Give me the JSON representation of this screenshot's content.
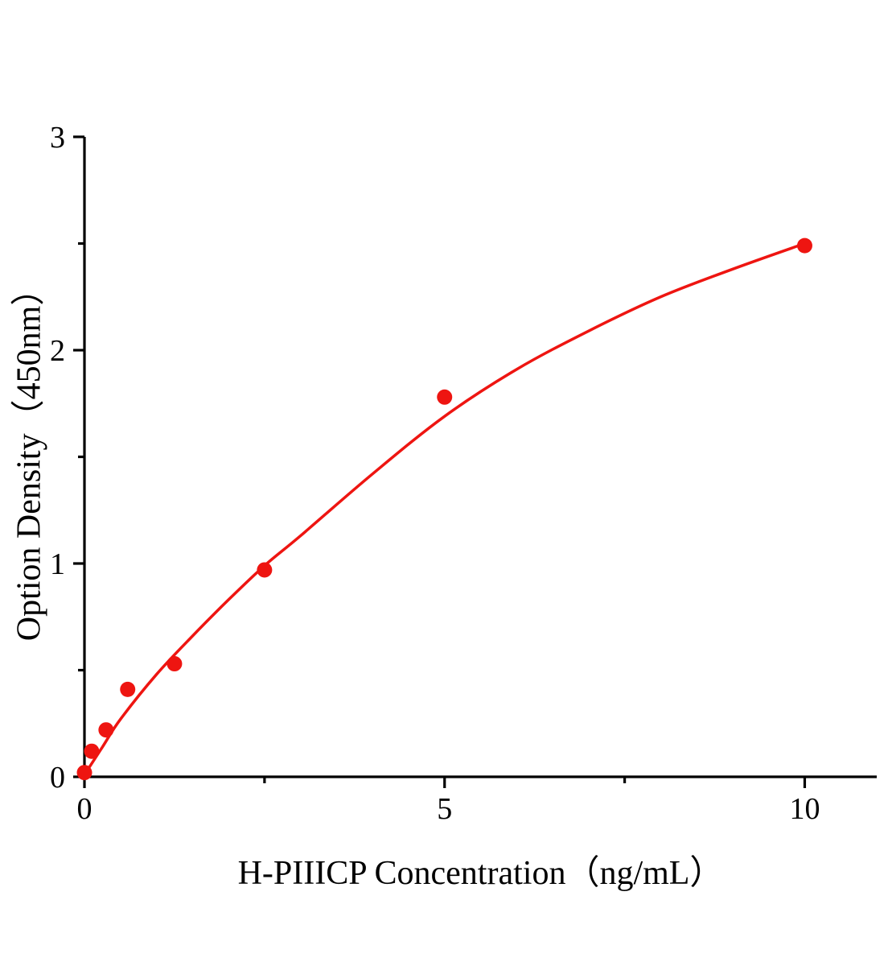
{
  "chart_data": {
    "type": "scatter",
    "title": "",
    "xlabel": "H-PIIICP Concentration（ng/mL）",
    "ylabel": "Option Density（450nm）",
    "xlim": [
      0,
      11
    ],
    "ylim": [
      0,
      3
    ],
    "grid": false,
    "legend_position": "none",
    "axis_color": "#000000",
    "series_color": "#ee1511",
    "marker_radius": 9.5,
    "x_major_ticks": [
      {
        "value": 0,
        "label": "0"
      },
      {
        "value": 5,
        "label": "5"
      },
      {
        "value": 10,
        "label": "10"
      }
    ],
    "x_minor_ticks": [
      2.5,
      7.5
    ],
    "y_major_ticks": [
      {
        "value": 0,
        "label": "0"
      },
      {
        "value": 1,
        "label": "1"
      },
      {
        "value": 2,
        "label": "2"
      },
      {
        "value": 3,
        "label": "3"
      }
    ],
    "y_minor_ticks": [
      0.5,
      1.5,
      2.5
    ],
    "points": {
      "x": [
        0,
        0.1,
        0.3,
        0.6,
        1.25,
        2.5,
        5,
        10
      ],
      "y": [
        0.02,
        0.12,
        0.22,
        0.41,
        0.53,
        0.97,
        1.78,
        2.49
      ]
    },
    "fit_curve": {
      "x": [
        0,
        0.25,
        0.5,
        1,
        1.5,
        2,
        2.5,
        3,
        4,
        5,
        6,
        7,
        8,
        9,
        10
      ],
      "y": [
        0.01,
        0.14,
        0.27,
        0.48,
        0.66,
        0.83,
        0.99,
        1.13,
        1.42,
        1.69,
        1.91,
        2.09,
        2.25,
        2.38,
        2.5
      ]
    }
  },
  "layout_note": "ELISA standard curve, red fitted line with red circular markers, black L-shaped axes with outward ticks"
}
